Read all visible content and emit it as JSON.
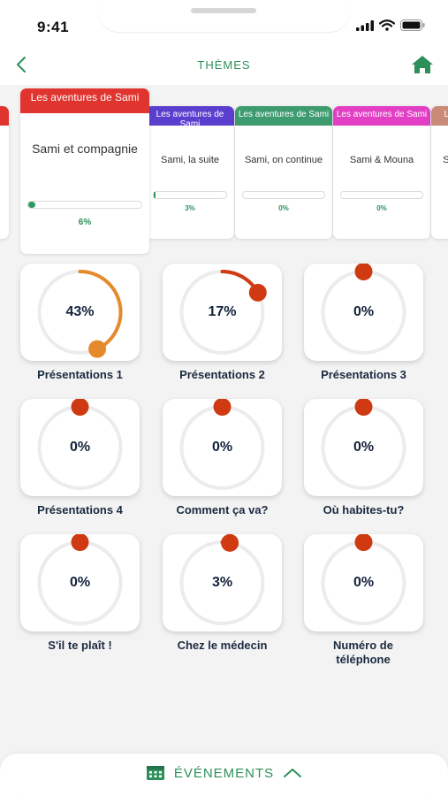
{
  "status_bar": {
    "time": "9:41"
  },
  "header": {
    "title": "THÈMES"
  },
  "colors": {
    "accent_green": "#2e8f5a",
    "progress_orange": "#e48a2c",
    "progress_red": "#cf3a12",
    "track_gray": "#ececec"
  },
  "themes": [
    {
      "header": "",
      "name": "",
      "progress_label": "",
      "progress": 0,
      "color": "#e0342f"
    },
    {
      "header": "Les aventures de Sami",
      "name": "Sami et compagnie",
      "progress_label": "6%",
      "progress": 0.06,
      "color": "#e0342f"
    },
    {
      "header": "Les aventures de Sami",
      "name": "Sami, la suite",
      "progress_label": "3%",
      "progress": 0.03,
      "color": "#5a3fcf"
    },
    {
      "header": "Les aventures de Sami",
      "name": "Sami, on continue",
      "progress_label": "0%",
      "progress": 0,
      "color": "#3e9b70"
    },
    {
      "header": "Les aventures de Sami",
      "name": "Sami & Mouna",
      "progress_label": "0%",
      "progress": 0,
      "color": "#e23fc4"
    },
    {
      "header": "Le",
      "name": "Sa",
      "progress_label": "",
      "progress": 0,
      "color": "#c98a78"
    }
  ],
  "lessons": [
    {
      "label": "Présentations 1",
      "progress_label": "43%",
      "progress": 0.43,
      "color": "#e48a2c"
    },
    {
      "label": "Présentations 2",
      "progress_label": "17%",
      "progress": 0.17,
      "color": "#cf3a12"
    },
    {
      "label": "Présentations 3",
      "progress_label": "0%",
      "progress": 0,
      "color": "#cf3a12"
    },
    {
      "label": "Présentations 4",
      "progress_label": "0%",
      "progress": 0,
      "color": "#cf3a12"
    },
    {
      "label": "Comment ça va?",
      "progress_label": "0%",
      "progress": 0,
      "color": "#cf3a12"
    },
    {
      "label": "Où habites-tu?",
      "progress_label": "0%",
      "progress": 0,
      "color": "#cf3a12"
    },
    {
      "label": "S'il te plaît !",
      "progress_label": "0%",
      "progress": 0,
      "color": "#cf3a12"
    },
    {
      "label": "Chez le médecin",
      "progress_label": "3%",
      "progress": 0.03,
      "color": "#cf3a12"
    },
    {
      "label": "Numéro de téléphone",
      "progress_label": "0%",
      "progress": 0,
      "color": "#cf3a12"
    }
  ],
  "footer": {
    "label": "ÉVÉNEMENTS",
    "icon": "calendar-icon",
    "toggle_icon": "chevron-up-icon"
  }
}
